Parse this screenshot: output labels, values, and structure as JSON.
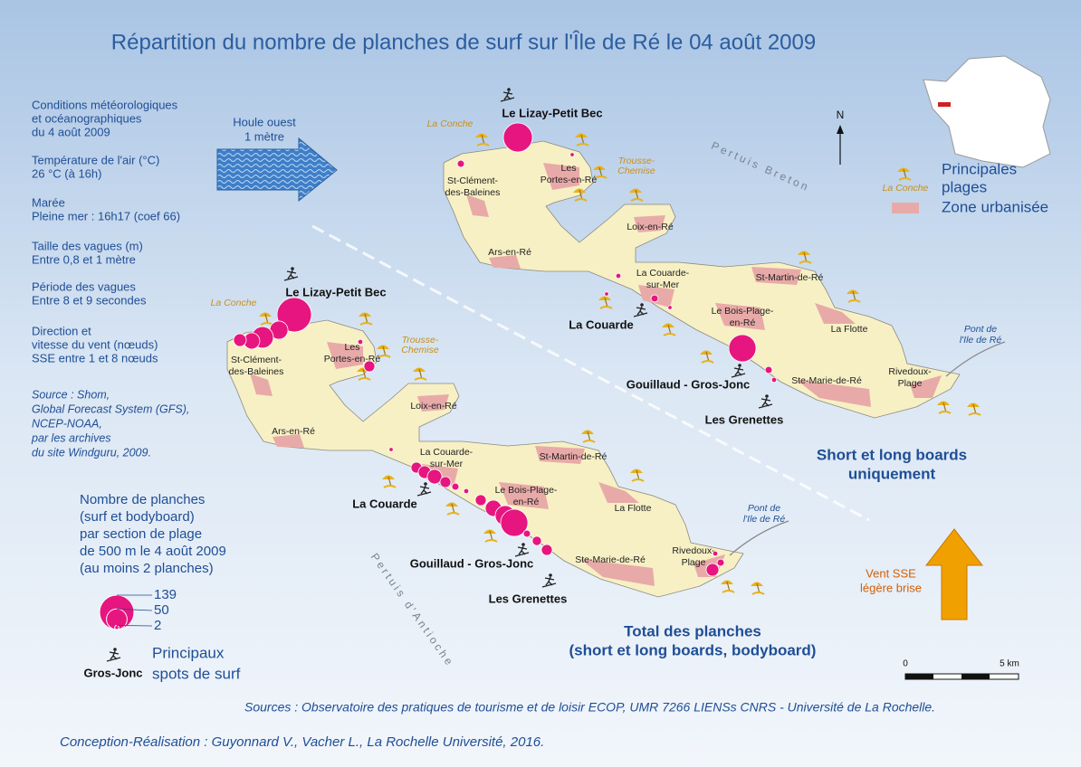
{
  "title": "Répartition du nombre de planches de surf sur l'Île de Ré le 04 août 2009",
  "conditions": [
    [
      "Conditions météorologiques",
      "et océanographiques",
      "du 4 août 2009"
    ],
    [
      "Température de l'air (°C)",
      "26 °C (à 16h)"
    ],
    [
      "Marée",
      "Pleine mer : 16h17 (coef 66)"
    ],
    [
      "Taille des vagues (m)",
      "Entre 0,8 et 1 mètre"
    ],
    [
      "Période des vagues",
      "Entre 8 et 9 secondes"
    ],
    [
      "Direction et",
      "vitesse du vent (nœuds)",
      "SSE entre 1 et 8 nœuds"
    ]
  ],
  "source": [
    "Source : Shom,",
    "Global Forecast System (GFS),",
    "NCEP-NOAA,",
    "par les archives",
    "du site Windguru, 2009."
  ],
  "swell": [
    "Houle ouest",
    "1 mètre"
  ],
  "wind": [
    "Vent SSE",
    "légère brise"
  ],
  "size_legend": {
    "title": [
      "Nombre de planches",
      "(surf et bodyboard)",
      "par section de plage",
      "de 500 m le 4 août 2009",
      "(au moins 2 planches)"
    ],
    "sizes": [
      139,
      50,
      2
    ]
  },
  "spot_legend": {
    "title": [
      "Principaux",
      "spots de surf"
    ],
    "example": "Gros-Jonc"
  },
  "map_legend": {
    "beach": [
      "Principales",
      "plages"
    ],
    "beach_example": "La Conche",
    "urban": "Zone urbanisée",
    "north": "N"
  },
  "scale": [
    "0",
    "5 km"
  ],
  "maps": [
    {
      "subtitle": [
        "Short et long boards",
        "uniquement"
      ],
      "water": "Pertuis Breton",
      "places": [
        [
          "St-Clément-",
          "des-Baleines"
        ],
        [
          "Les",
          "Portes-en-Ré"
        ],
        [
          "Ars-en-Ré"
        ],
        [
          "Loix-en-Ré"
        ],
        [
          "La Couarde-",
          "sur-Mer"
        ],
        [
          "St-Martin-de-Ré"
        ],
        [
          "Le Bois-Plage-",
          "en-Ré"
        ],
        [
          "La Flotte"
        ],
        [
          "Ste-Marie-de-Ré"
        ],
        [
          "Rivedoux-",
          "Plage"
        ]
      ],
      "beaches": [
        [
          "La Conche"
        ],
        [
          "Trousse-",
          "Chemise"
        ]
      ],
      "bridge": [
        "Pont de",
        "l'Ile de Ré"
      ],
      "spots": [
        "Le Lizay-Petit Bec",
        "La Couarde",
        "Gouillaud - Gros-Jonc",
        "Les Grenettes"
      ],
      "boards": [
        99,
        6,
        2,
        3,
        2,
        6,
        2,
        87,
        6,
        3
      ]
    },
    {
      "subtitle": [
        "Total des planches",
        "(short et long boards, bodyboard)"
      ],
      "water": "Pertuis d'Antioche",
      "places": [
        [
          "St-Clément-",
          "des-Baleines"
        ],
        [
          "Les",
          "Portes-en-Ré"
        ],
        [
          "Ars-en-Ré"
        ],
        [
          "Loix-en-Ré"
        ],
        [
          "La Couarde-",
          "sur-Mer"
        ],
        [
          "St-Martin-de-Ré"
        ],
        [
          "Le Bois-Plage-",
          "en-Ré"
        ],
        [
          "La Flotte"
        ],
        [
          "Ste-Marie-de-Ré"
        ],
        [
          "Rivedoux-",
          "Plage"
        ]
      ],
      "beaches": [
        [
          "La Conche"
        ],
        [
          "Trousse-",
          "Chemise"
        ]
      ],
      "bridge": [
        "Pont de",
        "l'Ile de Ré"
      ],
      "spots": [
        "Le Lizay-Petit Bec",
        "La Couarde",
        "Gouillaud - Gros-Jonc",
        "Les Grenettes"
      ],
      "boards": [
        139,
        39,
        55,
        31,
        19,
        3,
        14,
        2,
        14,
        19,
        25,
        14,
        6,
        3,
        14,
        31,
        47,
        87,
        6,
        10,
        14,
        3,
        19,
        6
      ]
    }
  ],
  "sources": "Sources : Observatoire des pratiques de tourisme et de loisir ECOP, UMR 7266 LIENSs CNRS - Université de La Rochelle.",
  "credits": "Conception-Réalisation : Guyonnard V., Vacher L., La Rochelle Université, 2016."
}
